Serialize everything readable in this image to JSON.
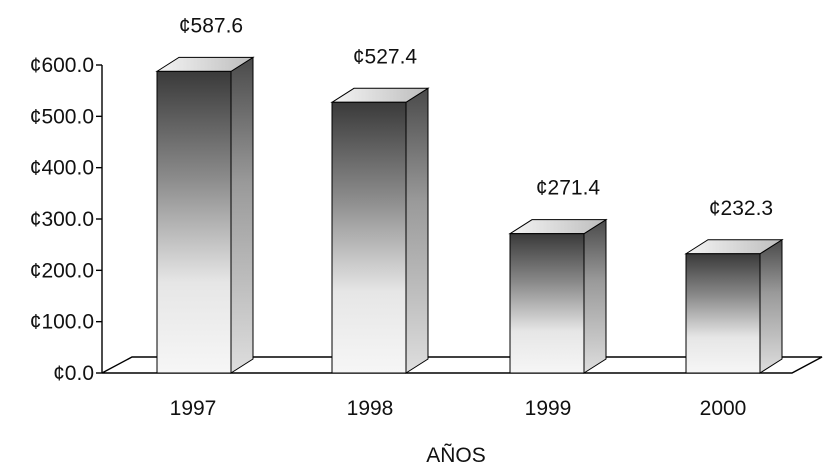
{
  "chart_data": {
    "type": "bar",
    "categories": [
      "1997",
      "1998",
      "1999",
      "2000"
    ],
    "values": [
      587.6,
      527.4,
      271.4,
      232.3
    ],
    "data_labels": [
      "¢587.6",
      "¢527.4",
      "¢271.4",
      "¢232.3"
    ],
    "y_ticks": [
      0,
      100,
      200,
      300,
      400,
      500,
      600
    ],
    "y_tick_labels": [
      "¢0.0",
      "¢100.0",
      "¢200.0",
      "¢300.0",
      "¢400.0",
      "¢500.0",
      "¢600.0"
    ],
    "ylim": [
      0,
      600
    ],
    "xlabel": "AÑOS",
    "ylabel": "",
    "title": "",
    "grid": false,
    "legend": "none",
    "style": "3d-bars",
    "colors": {
      "bar_dark": "#3a3a3a",
      "bar_mid": "#8a8a8a",
      "bar_light": "#f2f2f2",
      "axis": "#000000"
    }
  }
}
